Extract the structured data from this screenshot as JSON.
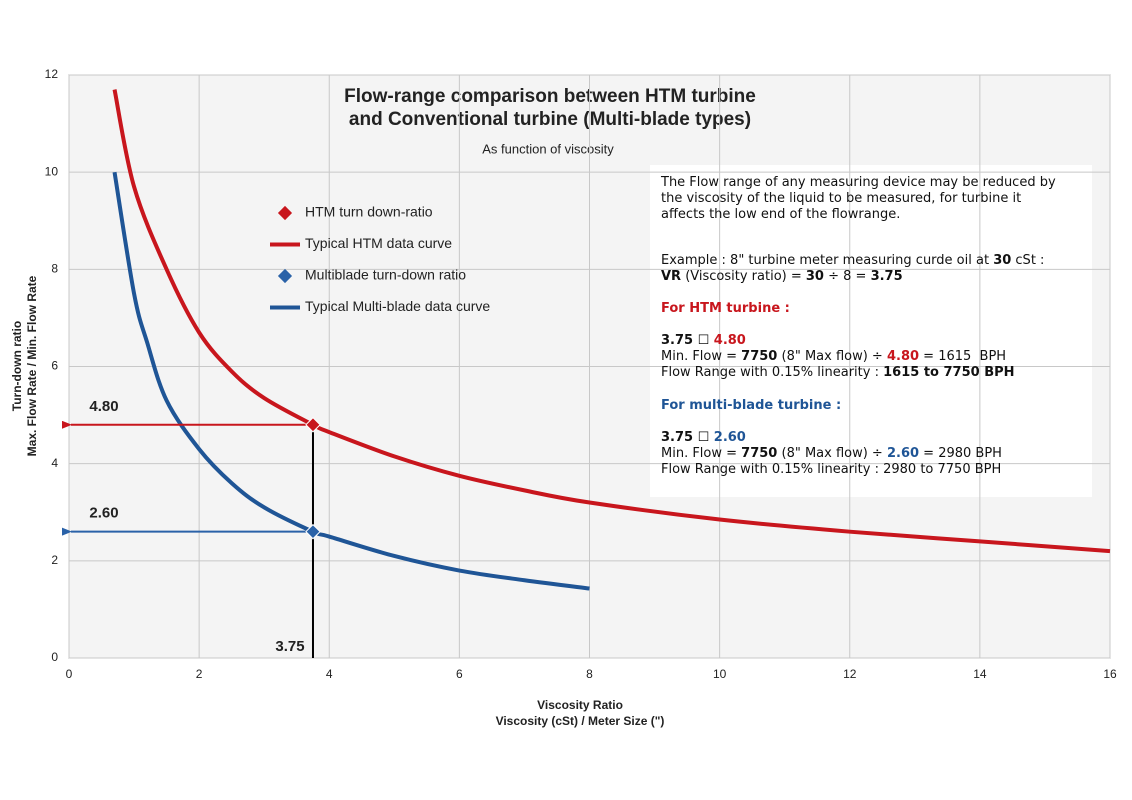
{
  "chart_data": {
    "type": "line",
    "title": [
      "Flow-range comparison between HTM turbine",
      "and Conventional turbine (Multi-blade types)"
    ],
    "subtitle": "As function of viscosity",
    "x_label": [
      "Viscosity Ratio",
      "Viscosity (cSt) / Meter Size (\")"
    ],
    "y_label": [
      "Turn-down ratio",
      "Max. Flow Rate / Min. Flow Rate"
    ],
    "xlim": [
      0,
      16
    ],
    "ylim": [
      0,
      12
    ],
    "xticks": [
      0,
      2,
      4,
      6,
      8,
      10,
      12,
      14,
      16
    ],
    "yticks": [
      0,
      2,
      4,
      6,
      8,
      10,
      12
    ],
    "grid": true,
    "series": [
      {
        "name": "Typical HTM data curve",
        "color": "#c8161d",
        "x": [
          0.7,
          1,
          1.5,
          2,
          2.5,
          3,
          3.75,
          4,
          5,
          6,
          7,
          8,
          10,
          12,
          14,
          16
        ],
        "values": [
          11.7,
          9.7,
          8.0,
          6.7,
          5.9,
          5.35,
          4.8,
          4.65,
          4.15,
          3.75,
          3.45,
          3.2,
          2.85,
          2.6,
          2.4,
          2.2
        ]
      },
      {
        "name": "Typical Multi-blade data curve",
        "color": "#1f5596",
        "x": [
          0.7,
          1,
          1.2,
          1.5,
          2,
          2.5,
          3,
          3.75,
          4,
          5,
          6,
          7,
          8
        ],
        "values": [
          10.0,
          7.5,
          6.5,
          5.3,
          4.3,
          3.6,
          3.1,
          2.6,
          2.5,
          2.1,
          1.8,
          1.6,
          1.43
        ]
      }
    ],
    "points": [
      {
        "name": "HTM turn down-ratio",
        "color": "#c8161d",
        "x": 3.75,
        "y": 4.8,
        "value_label": "4.80"
      },
      {
        "name": "Multiblade turn-down ratio",
        "color": "#2a62a8",
        "x": 3.75,
        "y": 2.6,
        "value_label": "2.60"
      }
    ],
    "note": [
      [
        {
          "text": "The Flow range of any measuring device may be reduced by"
        }
      ],
      [
        {
          "text": "the viscosity of the liquid to be measured, for turbine it"
        }
      ],
      [
        {
          "text": "affects the low end of the flowrange."
        }
      ],
      [
        {
          "text": "Example : 8\" turbine meter measuring curde oil at "
        },
        {
          "text": "30",
          "bold": true
        },
        {
          "text": " cSt :"
        }
      ],
      [
        {
          "text": "VR",
          "bold": true
        },
        {
          "text": " (Viscosity ratio) = "
        },
        {
          "text": "30",
          "bold": true
        },
        {
          "text": " ÷ 8 = "
        },
        {
          "text": "3.75",
          "bold": true
        }
      ],
      [
        {
          "text": "For HTM turbine :",
          "bold": true,
          "color": "#c8161d"
        }
      ],
      [
        {
          "text": "3.75 ☐ ",
          "bold": true
        },
        {
          "text": "4.80",
          "bold": true,
          "color": "#c8161d"
        }
      ],
      [
        {
          "text": "Min. Flow = "
        },
        {
          "text": "7750",
          "bold": true
        },
        {
          "text": " (8\" Max flow) ÷ "
        },
        {
          "text": "4.80",
          "bold": true,
          "color": "#c8161d"
        },
        {
          "text": " = 1615  BPH"
        }
      ],
      [
        {
          "text": "Flow Range with 0.15% linearity : "
        },
        {
          "text": "1615 to 7750 BPH",
          "bold": true
        }
      ],
      [
        {
          "text": "For multi-blade turbine :",
          "bold": true,
          "color": "#1f5596"
        }
      ],
      [
        {
          "text": "3.75 ☐ ",
          "bold": true
        },
        {
          "text": "2.60",
          "bold": true,
          "color": "#1f5596"
        }
      ],
      [
        {
          "text": "Min. Flow = "
        },
        {
          "text": "7750",
          "bold": true
        },
        {
          "text": " (8\" Max flow) ÷ "
        },
        {
          "text": "2.60",
          "bold": true,
          "color": "#1f5596"
        },
        {
          "text": " = 2980 BPH"
        }
      ],
      [
        {
          "text": "Flow Range with 0.15% linearity : 2980 to 7750 BPH"
        }
      ]
    ]
  }
}
